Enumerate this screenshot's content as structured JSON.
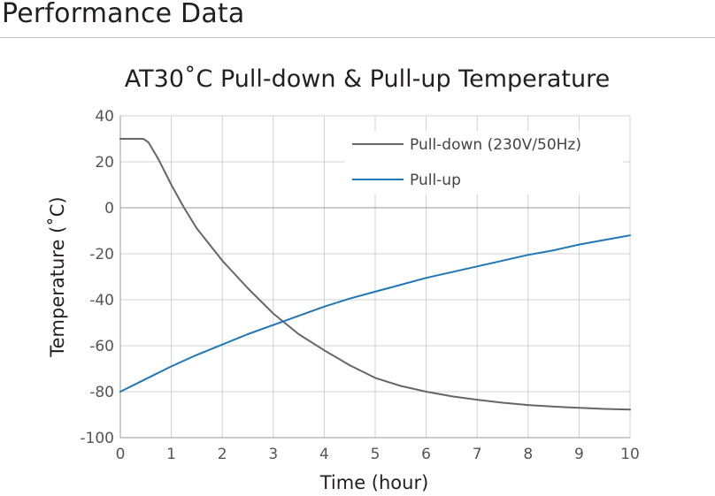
{
  "page": {
    "heading": "Performance Data"
  },
  "chart_data": {
    "type": "line",
    "title": "AT30˚C Pull-down & Pull-up Temperature",
    "xlabel": "Time (hour)",
    "ylabel": "Temperature (˚C)",
    "xlim": [
      0,
      10
    ],
    "ylim": [
      -100,
      40
    ],
    "xticks": [
      0,
      1,
      2,
      3,
      4,
      5,
      6,
      7,
      8,
      9,
      10
    ],
    "yticks": [
      40,
      20,
      0,
      -20,
      -40,
      -60,
      -80,
      -100
    ],
    "grid": true,
    "legend_position": "top-right",
    "series": [
      {
        "name": "Pull-down (230V/50Hz)",
        "color": "#666666",
        "points": [
          [
            0,
            30
          ],
          [
            0.45,
            30
          ],
          [
            0.55,
            28.5
          ],
          [
            0.75,
            21
          ],
          [
            1,
            10
          ],
          [
            1.25,
            0
          ],
          [
            1.5,
            -9
          ],
          [
            2,
            -23
          ],
          [
            2.5,
            -35
          ],
          [
            3,
            -46
          ],
          [
            3.5,
            -55
          ],
          [
            4,
            -62
          ],
          [
            4.5,
            -68.5
          ],
          [
            5,
            -74
          ],
          [
            5.5,
            -77.5
          ],
          [
            6,
            -80
          ],
          [
            6.5,
            -82
          ],
          [
            7,
            -83.5
          ],
          [
            7.5,
            -84.8
          ],
          [
            8,
            -85.8
          ],
          [
            8.5,
            -86.5
          ],
          [
            9,
            -87
          ],
          [
            9.5,
            -87.5
          ],
          [
            10,
            -87.8
          ]
        ]
      },
      {
        "name": "Pull-up",
        "color": "#1f76b8",
        "points": [
          [
            0,
            -80
          ],
          [
            0.5,
            -74.5
          ],
          [
            1,
            -69
          ],
          [
            1.5,
            -64
          ],
          [
            2,
            -59.5
          ],
          [
            2.5,
            -55
          ],
          [
            3,
            -51
          ],
          [
            3.5,
            -47
          ],
          [
            4,
            -43
          ],
          [
            4.5,
            -39.5
          ],
          [
            5,
            -36.5
          ],
          [
            5.5,
            -33.5
          ],
          [
            6,
            -30.5
          ],
          [
            6.5,
            -28
          ],
          [
            7,
            -25.5
          ],
          [
            7.5,
            -23
          ],
          [
            8,
            -20.5
          ],
          [
            8.5,
            -18.5
          ],
          [
            9,
            -16
          ],
          [
            9.5,
            -14
          ],
          [
            10,
            -12
          ]
        ]
      }
    ]
  }
}
